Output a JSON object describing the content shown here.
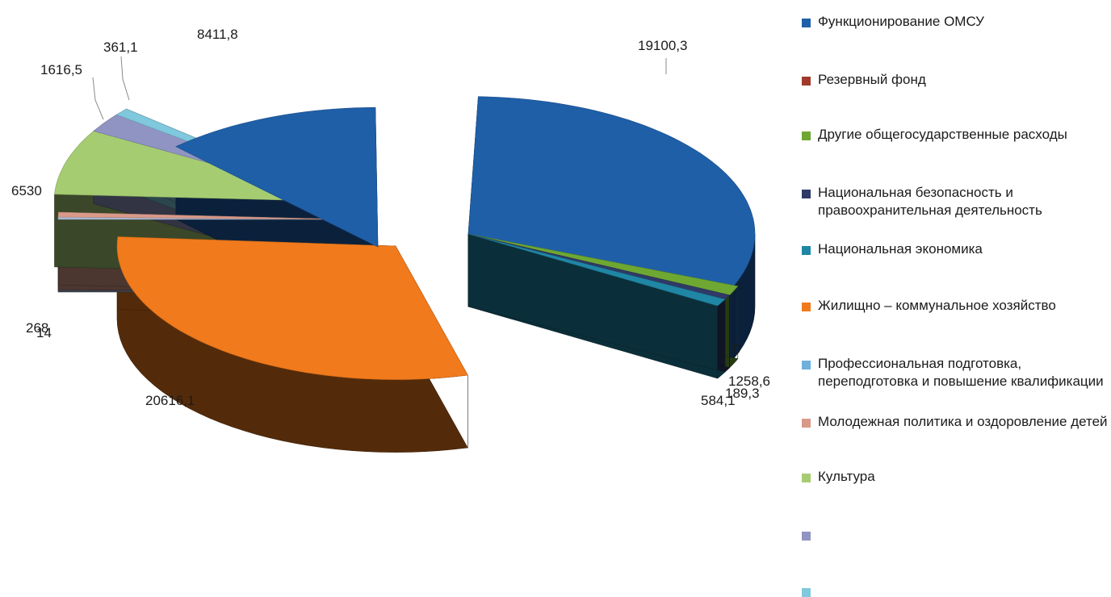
{
  "chart_data": {
    "type": "pie",
    "subtype": "exploded-3d",
    "legend_position": "right",
    "series": [
      {
        "name": "Функционирование ОМСУ",
        "parts": [
          {
            "label": "19100,3",
            "value": 19100.3
          },
          {
            "label": "8411,8",
            "value": 8411.8
          }
        ]
      }
    ],
    "slices": [
      {
        "category": "Функционирование ОМСУ",
        "value": 19100.3,
        "label": "19100,3",
        "color": "#1f5fa8"
      },
      {
        "category": "Другие общегосударственные расходы",
        "value": 1258.6,
        "label": "1258,6",
        "color": "#6ea832"
      },
      {
        "category": "Национальная безопасность  и правоохранительная  деятельность",
        "value": 189.3,
        "label": "189,3",
        "color": "#2f3a66"
      },
      {
        "category": "Национальная экономика",
        "value": 584.1,
        "label": "584,1",
        "color": "#1f87a5"
      },
      {
        "category": "Резервный фонд",
        "value": 0,
        "label": "0",
        "color": "#a03a2a"
      },
      {
        "category": "Жилищно – коммунальное хозяйство",
        "value": 20616.1,
        "label": "20616,1",
        "color": "#f07a1c"
      },
      {
        "category": "",
        "value": 14,
        "label": "14",
        "color": "#aab9d6"
      },
      {
        "category": "Молодежная политика и оздоровление детей",
        "value": 268,
        "label": "268",
        "color": "#d99a8a"
      },
      {
        "category": "Культура",
        "value": 6530,
        "label": "6530",
        "color": "#a6cc72"
      },
      {
        "category": "",
        "value": 1616.5,
        "label": "1616,5",
        "color": "#8f94c2"
      },
      {
        "category": "",
        "value": 361.1,
        "label": "361,1",
        "color": "#7fc8dd"
      },
      {
        "category": "Функционирование ОМСУ",
        "value": 8411.8,
        "label": "8411,8",
        "color": "#1f5fa8"
      }
    ],
    "legend": [
      {
        "label": "Функционирование ОМСУ",
        "color": "#1f5fa8"
      },
      {
        "label": "Резервный фонд",
        "color": "#a03a2a"
      },
      {
        "label": "Другие общегосударственные расходы",
        "color": "#6ea832"
      },
      {
        "label": "Национальная безопасность  и правоохранительная  деятельность",
        "color": "#2f3a66"
      },
      {
        "label": "Национальная экономика",
        "color": "#1f87a5"
      },
      {
        "label": "Жилищно – коммунальное хозяйство",
        "color": "#f07a1c"
      },
      {
        "label": "Профессиональная подготовка, переподготовка и повышение квалификации",
        "color": "#6fb0dc"
      },
      {
        "label": "Молодежная политика и оздоровление детей",
        "color": "#d99a8a"
      },
      {
        "label": "Культура",
        "color": "#a6cc72"
      },
      {
        "label": "",
        "color": "#8f94c2"
      },
      {
        "label": "",
        "color": "#7fc8dd"
      }
    ]
  }
}
